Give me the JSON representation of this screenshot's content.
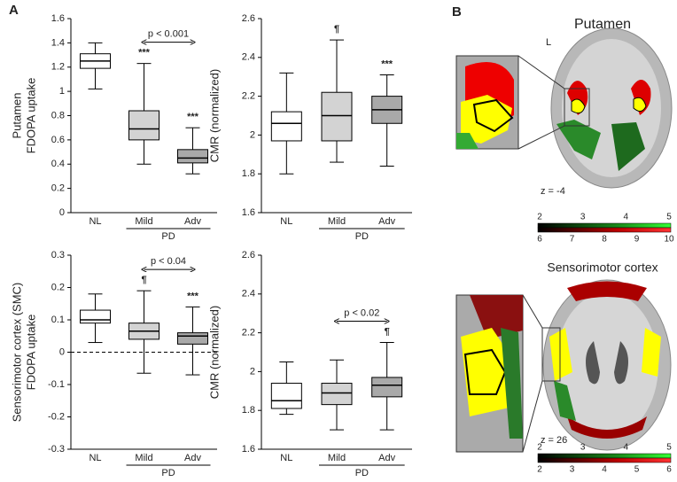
{
  "panels": {
    "a": "A",
    "b": "B"
  },
  "chart_data": [
    {
      "type": "box",
      "ylabel": [
        "Putamen",
        "FDOPA uptake"
      ],
      "categories": [
        "NL",
        "Mild",
        "Adv"
      ],
      "group_label": "PD",
      "ylim": [
        0,
        1.6
      ],
      "yticks": [
        0,
        0.2,
        0.4,
        0.6,
        0.8,
        1,
        1.2,
        1.4,
        1.6
      ],
      "colors": [
        "#ffffff",
        "#d3d3d3",
        "#a9a9a9"
      ],
      "boxes": [
        {
          "min": 1.02,
          "q1": 1.19,
          "median": 1.25,
          "q3": 1.31,
          "max": 1.4
        },
        {
          "min": 0.4,
          "q1": 0.6,
          "median": 0.69,
          "q3": 0.84,
          "max": 1.23,
          "annotation": "***"
        },
        {
          "min": 0.32,
          "q1": 0.41,
          "median": 0.45,
          "q3": 0.52,
          "max": 0.7,
          "annotation": "***"
        }
      ],
      "comparison": "p < 0.001"
    },
    {
      "type": "box",
      "ylabel": [
        "CMR (normalized)"
      ],
      "categories": [
        "NL",
        "Mild",
        "Adv"
      ],
      "group_label": "PD",
      "ylim": [
        1.6,
        2.6
      ],
      "yticks": [
        1.6,
        1.8,
        2,
        2.2,
        2.4,
        2.6
      ],
      "colors": [
        "#ffffff",
        "#d3d3d3",
        "#a9a9a9"
      ],
      "boxes": [
        {
          "min": 1.8,
          "q1": 1.97,
          "median": 2.06,
          "q3": 2.12,
          "max": 2.32
        },
        {
          "min": 1.86,
          "q1": 1.97,
          "median": 2.1,
          "q3": 2.22,
          "max": 2.49,
          "annotation": "¶"
        },
        {
          "min": 1.84,
          "q1": 2.06,
          "median": 2.13,
          "q3": 2.2,
          "max": 2.31,
          "annotation": "***"
        }
      ]
    },
    {
      "type": "box",
      "ylabel": [
        "Sensorimotor cortex (SMC)",
        "FDOPA uptake"
      ],
      "categories": [
        "NL",
        "Mild",
        "Adv"
      ],
      "group_label": "PD",
      "ylim": [
        -0.3,
        0.3
      ],
      "yticks": [
        -0.3,
        -0.2,
        -0.1,
        0,
        0.1,
        0.2,
        0.3
      ],
      "refline": 0,
      "colors": [
        "#ffffff",
        "#d3d3d3",
        "#a9a9a9"
      ],
      "boxes": [
        {
          "min": 0.03,
          "q1": 0.09,
          "median": 0.1,
          "q3": 0.13,
          "max": 0.18
        },
        {
          "min": -0.065,
          "q1": 0.04,
          "median": 0.065,
          "q3": 0.09,
          "max": 0.19,
          "annotation": "¶"
        },
        {
          "min": -0.07,
          "q1": 0.025,
          "median": 0.05,
          "q3": 0.06,
          "max": 0.14,
          "annotation": "***"
        }
      ],
      "comparison": "p < 0.04"
    },
    {
      "type": "box",
      "ylabel": [
        "CMR (normalized)"
      ],
      "categories": [
        "NL",
        "Mild",
        "Adv"
      ],
      "group_label": "PD",
      "ylim": [
        1.6,
        2.6
      ],
      "yticks": [
        1.6,
        1.8,
        2,
        2.2,
        2.4,
        2.6
      ],
      "colors": [
        "#ffffff",
        "#d3d3d3",
        "#a9a9a9"
      ],
      "boxes": [
        {
          "min": 1.78,
          "q1": 1.81,
          "median": 1.85,
          "q3": 1.94,
          "max": 2.05
        },
        {
          "min": 1.7,
          "q1": 1.83,
          "median": 1.89,
          "q3": 1.94,
          "max": 2.06
        },
        {
          "min": 1.7,
          "q1": 1.87,
          "median": 1.93,
          "q3": 1.97,
          "max": 2.15,
          "annotation": "¶"
        }
      ],
      "comparison": "p < 0.02"
    }
  ],
  "brain": {
    "top": {
      "title": "Putamen",
      "side": "L",
      "slice": "z = -4",
      "scale_upper": [
        2,
        3,
        4,
        5
      ],
      "scale_lower": [
        6,
        7,
        8,
        9,
        10
      ]
    },
    "bottom": {
      "title": "Sensorimotor cortex",
      "slice": "z = 26",
      "scale_upper": [
        2,
        3,
        4,
        5
      ],
      "scale_lower": [
        2,
        3,
        4,
        5,
        6
      ]
    }
  }
}
